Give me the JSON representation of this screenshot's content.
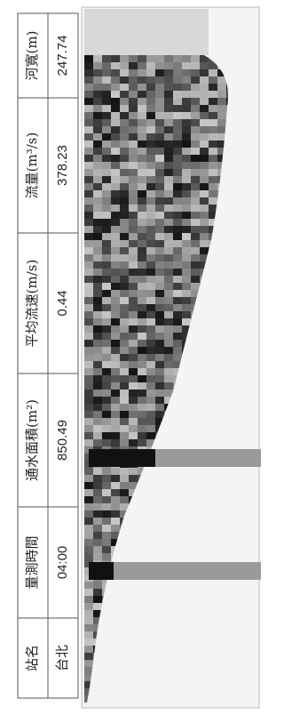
{
  "table": {
    "headers": [
      "站名",
      "量測時間",
      "通水面積(m²)",
      "平均流速(m/s)",
      "流量(m³/s)",
      "河寬(m)"
    ],
    "rows": [
      [
        "台北",
        "04:00",
        "850.49",
        "0.44",
        "378.23",
        "247.74"
      ]
    ]
  }
}
